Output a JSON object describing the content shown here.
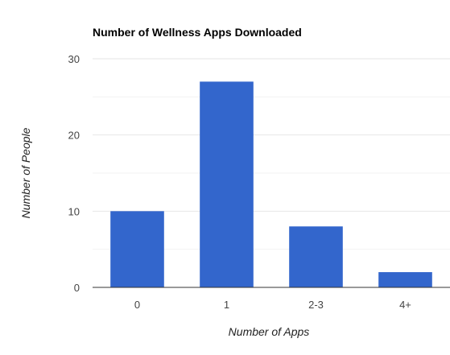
{
  "chart_data": {
    "type": "bar",
    "title": "Number of Wellness Apps Downloaded",
    "xlabel": "Number of Apps",
    "ylabel": "Number of People",
    "categories": [
      "0",
      "1",
      "2-3",
      "4+"
    ],
    "values": [
      10,
      27,
      8,
      2
    ],
    "ylim": [
      0,
      30
    ],
    "yticks": [
      0,
      10,
      20,
      30
    ],
    "grid": true,
    "bar_color": "#3366cc",
    "legend": "none"
  }
}
